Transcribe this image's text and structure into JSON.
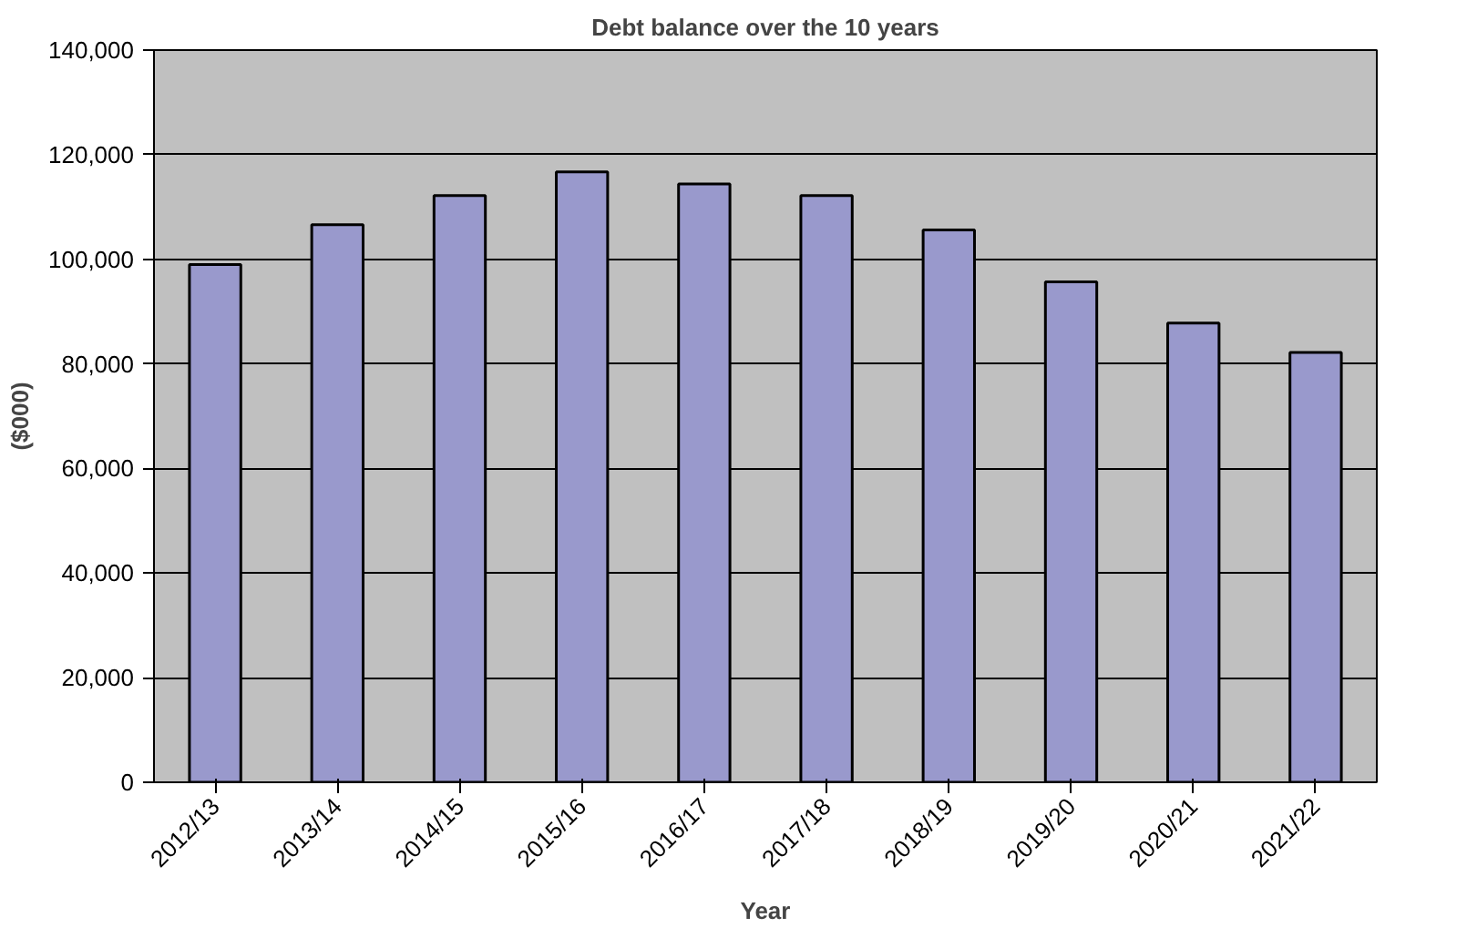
{
  "chart_data": {
    "type": "bar",
    "title": "Debt balance over the 10 years",
    "xlabel": "Year",
    "ylabel": "($000)",
    "categories": [
      "2012/13",
      "2013/14",
      "2014/15",
      "2015/16",
      "2016/17",
      "2017/18",
      "2018/19",
      "2019/20",
      "2020/21",
      "2021/22"
    ],
    "values": [
      99000,
      106600,
      112200,
      116700,
      114400,
      112200,
      105600,
      95700,
      87800,
      82200
    ],
    "color": "#9999cc",
    "ylim": [
      0,
      140000
    ],
    "yticks": [
      {
        "value": 0,
        "label": "0"
      },
      {
        "value": 20000,
        "label": "20,000"
      },
      {
        "value": 40000,
        "label": "40,000"
      },
      {
        "value": 60000,
        "label": "60,000"
      },
      {
        "value": 80000,
        "label": "80,000"
      },
      {
        "value": 100000,
        "label": "100,000"
      },
      {
        "value": 120000,
        "label": "120,000"
      },
      {
        "value": 140000,
        "label": "140,000"
      }
    ],
    "grid": "y"
  }
}
